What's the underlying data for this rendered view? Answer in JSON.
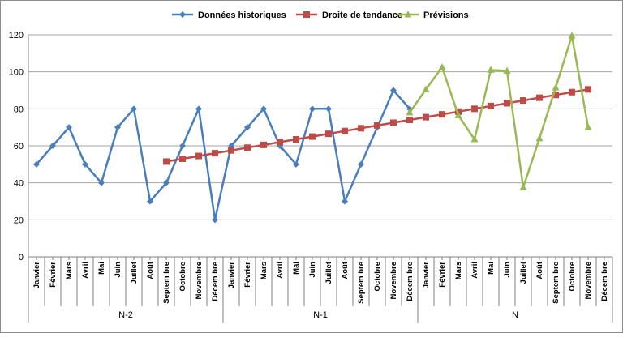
{
  "chart_data": {
    "type": "line",
    "title": "",
    "xlabel": "",
    "ylabel": "",
    "ylim": [
      0,
      120
    ],
    "yticks": [
      0,
      20,
      40,
      60,
      80,
      100,
      120
    ],
    "grid": true,
    "legend_position": "top",
    "months": [
      "Janvier",
      "Février",
      "Mars",
      "Avril",
      "Mai",
      "Juin",
      "Juillet",
      "Août",
      "Septembre",
      "Octobre",
      "Novembre",
      "Décembre"
    ],
    "month_labels": [
      "Janvier",
      "Février",
      "Mars",
      "Avril",
      "Mai",
      "Juin",
      "Juillet",
      "Août",
      "Septem bre",
      "Octobre",
      "Novembre",
      "Décem bre"
    ],
    "groups": [
      "N-2",
      "N-1",
      "N"
    ],
    "series": [
      {
        "name": "Données historiques",
        "color": "#4A7EBB",
        "marker": "diamond",
        "start_index": 0,
        "values": [
          50,
          60,
          70,
          50,
          40,
          70,
          80,
          30,
          40,
          60,
          80,
          20,
          60,
          70,
          80,
          60,
          50,
          80,
          80,
          30,
          50,
          70,
          90,
          80
        ]
      },
      {
        "name": "Droite de tendance",
        "color": "#BE4B48",
        "marker": "square",
        "start_index": 8,
        "values": [
          51.5,
          53,
          54.5,
          56,
          57.5,
          59,
          60.5,
          62,
          63.5,
          65,
          66.5,
          68,
          69.5,
          71,
          72.5,
          74,
          75.5,
          77,
          78.5,
          80,
          81.5,
          83,
          84.5,
          86,
          87.5,
          89,
          90.5
        ]
      },
      {
        "name": "Prévisions",
        "color": "#98B954",
        "marker": "triangle",
        "start_index": 23,
        "values": [
          78,
          90.5,
          102.5,
          76.5,
          63.5,
          101,
          100.5,
          37.5,
          64,
          91.5,
          119.5,
          70
        ]
      }
    ]
  }
}
